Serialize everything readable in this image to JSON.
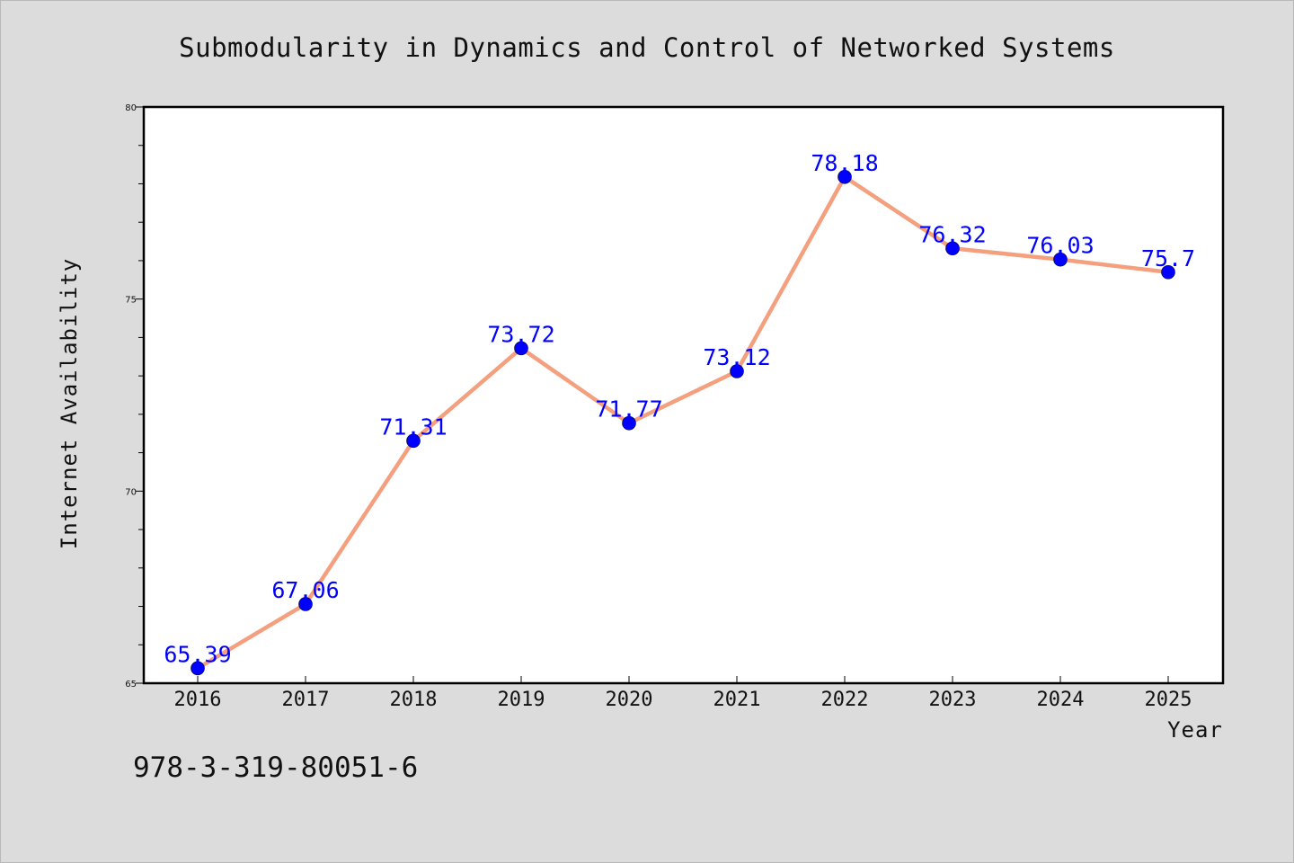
{
  "chart_data": {
    "type": "line",
    "title": "Submodularity in Dynamics and Control of Networked Systems",
    "xlabel": "Year",
    "ylabel": "Internet Availability",
    "categories": [
      "2016",
      "2017",
      "2018",
      "2019",
      "2020",
      "2021",
      "2022",
      "2023",
      "2024",
      "2025"
    ],
    "series": [
      {
        "values": [
          65.39,
          67.06,
          71.31,
          73.72,
          71.77,
          73.12,
          78.18,
          76.32,
          76.03,
          75.7
        ],
        "data_labels": [
          "65.39",
          "67.06",
          "71.31",
          "73.72",
          "71.77",
          "73.12",
          "78.18",
          "76.32",
          "76.03",
          "75.7"
        ],
        "line_color": "#f4a07e",
        "marker_color": "#0000ff"
      }
    ],
    "ylim": [
      65,
      80
    ],
    "yticks": [
      "65",
      "70",
      "75",
      "80"
    ],
    "grid": false,
    "legend": "none"
  },
  "footer_text": "978-3-319-80051-6",
  "colors": {
    "background": "#dcdcdc",
    "plot_background": "#ffffff",
    "line": "#f4a07e",
    "marker": "#0000ff",
    "data_label": "#0000ff"
  }
}
